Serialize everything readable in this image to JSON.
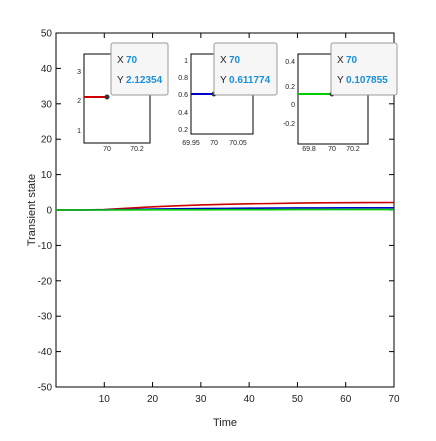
{
  "chart_data": {
    "type": "line",
    "xlabel": "Time",
    "ylabel": "Transient state",
    "xlim": [
      0,
      70
    ],
    "ylim": [
      -50,
      50
    ],
    "xticks": [
      10,
      20,
      30,
      40,
      50,
      60,
      70
    ],
    "yticks": [
      -50,
      -40,
      -30,
      -20,
      -10,
      0,
      10,
      20,
      30,
      40,
      50
    ],
    "series": [
      {
        "color": "#cc0000",
        "x": [
          0,
          5,
          10,
          15,
          20,
          25,
          30,
          35,
          40,
          45,
          50,
          55,
          60,
          65,
          70
        ],
        "y": [
          0,
          0,
          0.1,
          0.5,
          0.9,
          1.2,
          1.45,
          1.6,
          1.75,
          1.85,
          1.95,
          2.02,
          2.07,
          2.1,
          2.12
        ]
      },
      {
        "color": "#0000cc",
        "x": [
          0,
          5,
          10,
          15,
          20,
          25,
          30,
          35,
          40,
          45,
          50,
          55,
          60,
          65,
          70
        ],
        "y": [
          0,
          0,
          0.05,
          0.15,
          0.25,
          0.33,
          0.4,
          0.46,
          0.51,
          0.55,
          0.58,
          0.6,
          0.61,
          0.61,
          0.61
        ]
      },
      {
        "color": "#00cc00",
        "x": [
          0,
          5,
          10,
          15,
          20,
          25,
          30,
          35,
          40,
          45,
          50,
          55,
          60,
          65,
          70
        ],
        "y": [
          0,
          0,
          0.01,
          0.03,
          0.05,
          0.06,
          0.07,
          0.08,
          0.09,
          0.095,
          0.1,
          0.103,
          0.106,
          0.107,
          0.108
        ]
      }
    ],
    "insets": [
      {
        "color": "#cc0000",
        "xticks": [
          "70",
          "70.2"
        ],
        "yticks": [
          "3",
          "2",
          "1"
        ],
        "point": {
          "x": 70,
          "y": 2.12354
        },
        "tip": {
          "x_label": "X",
          "x_value": "70",
          "y_label": "Y",
          "y_value": "2.12354"
        }
      },
      {
        "color": "#0000cc",
        "xticks": [
          "69.95",
          "70",
          "70.05"
        ],
        "yticks": [
          "1",
          "0.8",
          "0.6",
          "0.4",
          "0.2"
        ],
        "point": {
          "x": 70,
          "y": 0.611774
        },
        "tip": {
          "x_label": "X",
          "x_value": "70",
          "y_label": "Y",
          "y_value": "0.611774"
        }
      },
      {
        "color": "#00cc00",
        "xticks": [
          "69.8",
          "70",
          "70.2"
        ],
        "yticks": [
          "0.4",
          "0.2",
          "0",
          "-0.2"
        ],
        "point": {
          "x": 70,
          "y": 0.107855
        },
        "tip": {
          "x_label": "X",
          "x_value": "70",
          "y_label": "Y",
          "y_value": "0.107855"
        }
      }
    ]
  }
}
